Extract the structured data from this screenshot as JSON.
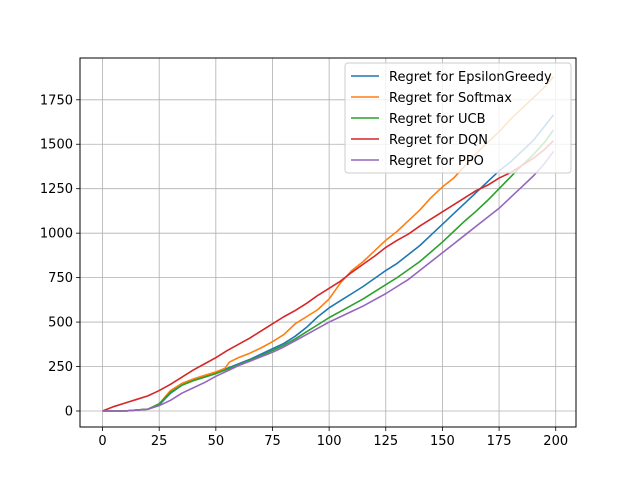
{
  "chart_data": {
    "type": "line",
    "title": "",
    "xlabel": "",
    "ylabel": "",
    "xlim": [
      -9.95,
      208.95
    ],
    "ylim": [
      -90,
      1985
    ],
    "grid": true,
    "legend_placement": "top-right",
    "x_ticks": [
      0,
      25,
      50,
      75,
      100,
      125,
      150,
      175,
      200
    ],
    "y_ticks": [
      0,
      250,
      500,
      750,
      1000,
      1250,
      1500,
      1750
    ],
    "series": [
      {
        "name": "Regret for EpsilonGreedy",
        "color": "#1f77b4",
        "x": [
          0,
          10,
          20,
          25,
          30,
          35,
          40,
          45,
          50,
          55,
          60,
          65,
          70,
          75,
          80,
          85,
          90,
          95,
          100,
          105,
          110,
          115,
          120,
          125,
          130,
          135,
          140,
          145,
          150,
          155,
          160,
          165,
          170,
          175,
          180,
          185,
          190,
          195,
          199
        ],
        "y": [
          0,
          0,
          10,
          35,
          100,
          145,
          175,
          195,
          215,
          240,
          265,
          290,
          320,
          350,
          380,
          420,
          470,
          530,
          580,
          620,
          660,
          700,
          745,
          790,
          830,
          880,
          930,
          990,
          1050,
          1110,
          1170,
          1230,
          1290,
          1350,
          1400,
          1460,
          1520,
          1600,
          1665
        ]
      },
      {
        "name": "Regret for Softmax",
        "color": "#ff7f0e",
        "x": [
          0,
          10,
          20,
          25,
          30,
          35,
          40,
          45,
          50,
          54,
          56,
          60,
          65,
          70,
          75,
          80,
          85,
          90,
          95,
          100,
          105,
          110,
          115,
          120,
          125,
          130,
          135,
          140,
          145,
          150,
          155,
          160,
          165,
          170,
          175,
          180,
          185,
          190,
          195,
          199
        ],
        "y": [
          0,
          0,
          10,
          40,
          115,
          155,
          180,
          200,
          220,
          240,
          275,
          300,
          325,
          355,
          390,
          430,
          490,
          530,
          570,
          630,
          720,
          790,
          840,
          900,
          960,
          1010,
          1070,
          1130,
          1200,
          1260,
          1310,
          1380,
          1450,
          1510,
          1570,
          1640,
          1700,
          1760,
          1820,
          1880
        ]
      },
      {
        "name": "Regret for UCB",
        "color": "#2ca02c",
        "x": [
          0,
          10,
          20,
          25,
          30,
          35,
          40,
          45,
          50,
          55,
          60,
          65,
          70,
          75,
          80,
          85,
          90,
          95,
          100,
          105,
          110,
          115,
          120,
          125,
          130,
          135,
          140,
          145,
          150,
          155,
          160,
          165,
          170,
          175,
          180,
          185,
          190,
          195,
          199
        ],
        "y": [
          0,
          0,
          10,
          40,
          105,
          145,
          170,
          190,
          210,
          235,
          260,
          285,
          310,
          340,
          370,
          405,
          445,
          485,
          525,
          560,
          595,
          630,
          670,
          710,
          750,
          795,
          840,
          895,
          950,
          1010,
          1070,
          1125,
          1185,
          1250,
          1315,
          1380,
          1440,
          1510,
          1580
        ]
      },
      {
        "name": "Regret for DQN",
        "color": "#d62728",
        "x": [
          0,
          5,
          10,
          15,
          20,
          25,
          30,
          35,
          40,
          45,
          50,
          55,
          60,
          65,
          70,
          75,
          80,
          85,
          90,
          95,
          100,
          105,
          110,
          115,
          120,
          125,
          130,
          135,
          140,
          145,
          150,
          155,
          160,
          165,
          170,
          175,
          180,
          185,
          190,
          195,
          199
        ],
        "y": [
          0,
          25,
          45,
          65,
          85,
          115,
          150,
          190,
          230,
          265,
          300,
          340,
          375,
          410,
          450,
          490,
          530,
          565,
          605,
          650,
          690,
          730,
          780,
          825,
          870,
          920,
          960,
          995,
          1040,
          1080,
          1120,
          1160,
          1200,
          1240,
          1270,
          1310,
          1340,
          1380,
          1420,
          1470,
          1520
        ]
      },
      {
        "name": "Regret for PPO",
        "color": "#9467bd",
        "x": [
          0,
          10,
          20,
          25,
          30,
          35,
          40,
          45,
          50,
          55,
          60,
          65,
          70,
          75,
          80,
          85,
          90,
          95,
          100,
          105,
          110,
          115,
          120,
          125,
          130,
          135,
          140,
          145,
          150,
          155,
          160,
          165,
          170,
          175,
          180,
          185,
          190,
          195,
          199
        ],
        "y": [
          0,
          0,
          10,
          30,
          60,
          100,
          130,
          160,
          195,
          225,
          255,
          280,
          305,
          330,
          360,
          395,
          430,
          465,
          500,
          530,
          560,
          590,
          625,
          660,
          700,
          740,
          790,
          840,
          890,
          940,
          990,
          1040,
          1090,
          1140,
          1200,
          1260,
          1320,
          1390,
          1460
        ]
      }
    ]
  }
}
